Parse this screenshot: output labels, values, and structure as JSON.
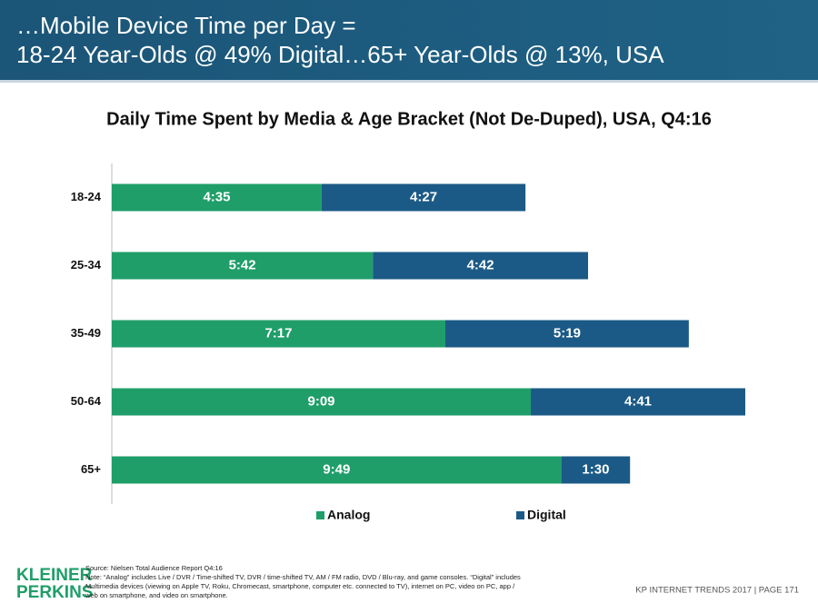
{
  "header": {
    "title_lines": [
      "…Mobile Device Time per Day =",
      "18-24 Year-Olds @ 49% Digital…65+ Year-Olds @ 13%, USA"
    ]
  },
  "chart_data": {
    "type": "stacked-barh",
    "title": "Daily Time Spent by Media & Age Bracket (Not De-Duped), USA, Q4:16",
    "categories": [
      "18-24",
      "25-34",
      "35-49",
      "50-64",
      "65+"
    ],
    "series": [
      {
        "name": "Analog",
        "color": "#1f9e69",
        "values": [
          275,
          342,
          437,
          549,
          589
        ],
        "value_labels": [
          "4:35",
          "5:42",
          "7:17",
          "9:09",
          "9:49"
        ]
      },
      {
        "name": "Digital",
        "color": "#1b5a86",
        "values": [
          267,
          282,
          319,
          281,
          90
        ],
        "value_labels": [
          "4:27",
          "4:42",
          "5:19",
          "4:41",
          "1:30"
        ]
      }
    ],
    "legend": "bottom"
  },
  "notes": [
    "Source: Nielsen Total Audience Report Q4:16",
    "Note: “Analog” includes Live / DVR / Time-shifted TV, DVR / time-shifted TV, AM / FM radio, DVD / Blu-ray, and game consoles. “Digital” includes",
    "Multimedia devices (viewing on Apple TV, Roku, Chromecast, smartphone, computer etc. connected to TV), internet on PC, video on PC, app /",
    "web on smartphone, and video on smartphone."
  ],
  "logo": [
    "KLEINER",
    "PERKINS"
  ],
  "footer": "KP INTERNET TRENDS 2017  |  PAGE 171"
}
